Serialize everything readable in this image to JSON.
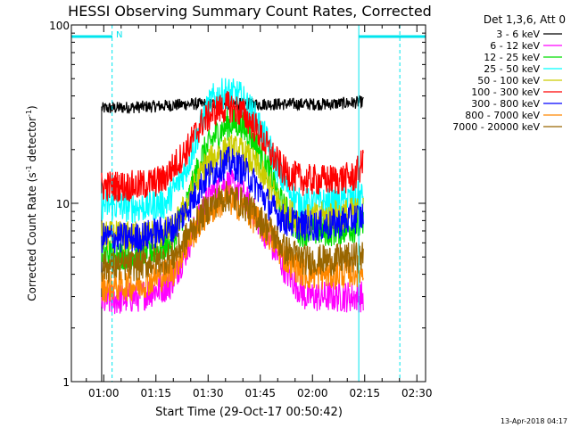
{
  "chart_data": {
    "type": "line",
    "title": "HESSI Observing Summary Count Rates, Corrected",
    "xlabel": "Start Time (29-Oct-17 00:50:42)",
    "ylabel_main": "Corrected Count Rate (s",
    "ylabel_sup1": "-1",
    "ylabel_mid": " detector",
    "ylabel_sup2": "-1",
    "ylabel_end": ")",
    "y_scale": "log",
    "ylim": [
      1,
      100
    ],
    "xlim_minutes": [
      50.7,
      152.5
    ],
    "x_ticks": [
      {
        "t": 60,
        "label": "01:00"
      },
      {
        "t": 75,
        "label": "01:15"
      },
      {
        "t": 90,
        "label": "01:30"
      },
      {
        "t": 105,
        "label": "01:45"
      },
      {
        "t": 120,
        "label": "02:00"
      },
      {
        "t": 135,
        "label": "02:15"
      },
      {
        "t": 150,
        "label": "02:30"
      }
    ],
    "y_ticks": [
      {
        "v": 1,
        "label": "1"
      },
      {
        "v": 10,
        "label": "10"
      },
      {
        "v": 100,
        "label": "100"
      }
    ],
    "night_marker": "N",
    "night_intervals": [
      [
        50.7,
        62.5
      ],
      [
        133.3,
        152.5
      ]
    ],
    "saa_lines": [
      59.4,
      142.1
    ],
    "legend_header": "Det 1,3,6, Att 0",
    "legend_position": "top-right",
    "data_start": 59.4,
    "data_end": 134.6,
    "footer_timestamp": "13-Apr-2018 04:17",
    "series": [
      {
        "name": "3 - 6 keV",
        "color": "#000000",
        "values": [
          [
            59.4,
            34
          ],
          [
            75,
            35
          ],
          [
            85,
            36
          ],
          [
            95,
            36
          ],
          [
            110,
            36
          ],
          [
            125,
            36
          ],
          [
            134.6,
            37
          ]
        ]
      },
      {
        "name": "6 - 12 keV",
        "color": "#ff00ff",
        "values": [
          [
            59.4,
            2.8
          ],
          [
            70,
            3.0
          ],
          [
            79,
            3.5
          ],
          [
            83,
            5.0
          ],
          [
            88,
            9.0
          ],
          [
            91,
            11.5
          ],
          [
            95,
            13.0
          ],
          [
            99,
            12.0
          ],
          [
            103,
            9.0
          ],
          [
            108,
            6.0
          ],
          [
            113,
            4.0
          ],
          [
            118,
            3.0
          ],
          [
            128,
            3.0
          ],
          [
            134.6,
            3.0
          ]
        ]
      },
      {
        "name": "12 - 25 keV",
        "color": "#00dd00",
        "values": [
          [
            59.4,
            5.2
          ],
          [
            70,
            5.2
          ],
          [
            79,
            5.8
          ],
          [
            84,
            10
          ],
          [
            88,
            18
          ],
          [
            92,
            24
          ],
          [
            96,
            28
          ],
          [
            99,
            28
          ],
          [
            103,
            23
          ],
          [
            107,
            16
          ],
          [
            111,
            10
          ],
          [
            116,
            7
          ],
          [
            125,
            7
          ],
          [
            134.6,
            7.5
          ]
        ]
      },
      {
        "name": "25 - 50 keV",
        "color": "#00ffff",
        "values": [
          [
            59.4,
            9.8
          ],
          [
            70,
            9.5
          ],
          [
            78,
            10
          ],
          [
            84,
            16
          ],
          [
            88,
            28
          ],
          [
            91,
            38
          ],
          [
            95,
            42
          ],
          [
            99,
            40
          ],
          [
            103,
            32
          ],
          [
            107,
            22
          ],
          [
            111,
            14
          ],
          [
            116,
            10
          ],
          [
            125,
            10
          ],
          [
            134.6,
            11
          ]
        ]
      },
      {
        "name": "50 - 100 keV",
        "color": "#cccc00",
        "values": [
          [
            59.4,
            6.5
          ],
          [
            70,
            6.5
          ],
          [
            80,
            7.0
          ],
          [
            85,
            11
          ],
          [
            89,
            16
          ],
          [
            93,
            19
          ],
          [
            97,
            20
          ],
          [
            100,
            19
          ],
          [
            104,
            16
          ],
          [
            108,
            12
          ],
          [
            112,
            9
          ],
          [
            117,
            8
          ],
          [
            125,
            8.5
          ],
          [
            134.6,
            9
          ]
        ]
      },
      {
        "name": "100 - 300 keV",
        "color": "#ff0000",
        "values": [
          [
            59.4,
            12.5
          ],
          [
            70,
            12.5
          ],
          [
            77,
            13.5
          ],
          [
            84,
            20
          ],
          [
            88,
            28
          ],
          [
            92,
            33
          ],
          [
            96,
            35
          ],
          [
            100,
            32
          ],
          [
            104,
            26
          ],
          [
            108,
            19
          ],
          [
            112,
            15
          ],
          [
            117,
            13.5
          ],
          [
            125,
            13.5
          ],
          [
            132,
            14
          ],
          [
            134.6,
            17
          ]
        ]
      },
      {
        "name": "300 - 800 keV",
        "color": "#0000ff",
        "values": [
          [
            59.4,
            6.4
          ],
          [
            70,
            6.4
          ],
          [
            80,
            7.2
          ],
          [
            85,
            10
          ],
          [
            89,
            13.5
          ],
          [
            93,
            16
          ],
          [
            96,
            17
          ],
          [
            100,
            15.5
          ],
          [
            104,
            12.5
          ],
          [
            108,
            9.5
          ],
          [
            112,
            8
          ],
          [
            118,
            7.5
          ],
          [
            125,
            7.5
          ],
          [
            134.6,
            8.5
          ]
        ]
      },
      {
        "name": "800 - 7000 keV",
        "color": "#ff8800",
        "values": [
          [
            59.4,
            3.4
          ],
          [
            70,
            3.5
          ],
          [
            80,
            4.2
          ],
          [
            85,
            6.5
          ],
          [
            89,
            8.5
          ],
          [
            93,
            10
          ],
          [
            96,
            10.5
          ],
          [
            100,
            9.5
          ],
          [
            104,
            8
          ],
          [
            108,
            6.5
          ],
          [
            112,
            5
          ],
          [
            118,
            4
          ],
          [
            125,
            4
          ],
          [
            134.6,
            4.2
          ]
        ]
      },
      {
        "name": "7000 - 20000 keV",
        "color": "#996600",
        "values": [
          [
            59.4,
            4.4
          ],
          [
            70,
            4.5
          ],
          [
            80,
            5.0
          ],
          [
            85,
            7
          ],
          [
            89,
            9
          ],
          [
            93,
            10.5
          ],
          [
            96,
            11
          ],
          [
            100,
            10
          ],
          [
            104,
            8.5
          ],
          [
            108,
            7
          ],
          [
            112,
            5.5
          ],
          [
            118,
            4.8
          ],
          [
            125,
            4.8
          ],
          [
            134.6,
            5.0
          ]
        ]
      }
    ]
  }
}
